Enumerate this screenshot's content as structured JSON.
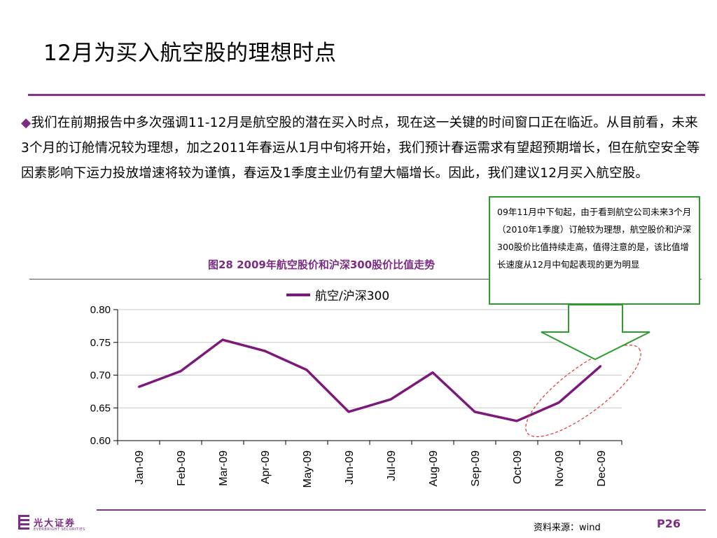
{
  "slide": {
    "title": "12月为买入航空股的理想时点",
    "bullet_glyph": "◆",
    "body": "我们在前期报告中多次强调11-12月是航空股的潜在买入时点，现在这一关键的时间窗口正在临近。从目前看，未来3个月的订舱情况较为理想，加之2011年春运从1月中旬将开始，我们预计春运需求有望超预期增长，但在航空安全等因素影响下运力投放增速将较为谨慎，春运及1季度主业仍有望大幅增长。因此，我们建议12月买入航空股。",
    "callout": "09年11月中下旬起，由于看到航空公司未来3个月（2010年1季度）订舱较为理想，航空股价和沪深300股价比值持续走高，值得注意的是，该比值增长速度从12月中旬起表现的更为明显",
    "source": "资料来源：wind",
    "page": "P26",
    "logo_cn": "光大证券",
    "logo_en": "EVERBRIGHT SECURITIES",
    "colors": {
      "brand": "#7b2c83",
      "callout_border": "#2c9c2c",
      "highlight_ellipse": "#e03030"
    }
  },
  "chart_data": {
    "type": "line",
    "title": "图28  2009年航空股价和沪深300股价比值走势",
    "categories": [
      "Jan-09",
      "Feb-09",
      "Mar-09",
      "Apr-09",
      "May-09",
      "Jun-09",
      "Jul-09",
      "Aug-09",
      "Sep-09",
      "Oct-09",
      "Nov-09",
      "Dec-09"
    ],
    "series": [
      {
        "name": "航空/沪深300",
        "color": "#7b1a7b",
        "values": [
          0.682,
          0.706,
          0.754,
          0.737,
          0.708,
          0.644,
          0.663,
          0.704,
          0.644,
          0.63,
          0.658,
          0.714
        ]
      }
    ],
    "y_ticks": [
      "0.80",
      "0.75",
      "0.70",
      "0.65",
      "0.60"
    ],
    "ylim": [
      0.6,
      0.8
    ],
    "grid": true,
    "legend": "top-center"
  }
}
